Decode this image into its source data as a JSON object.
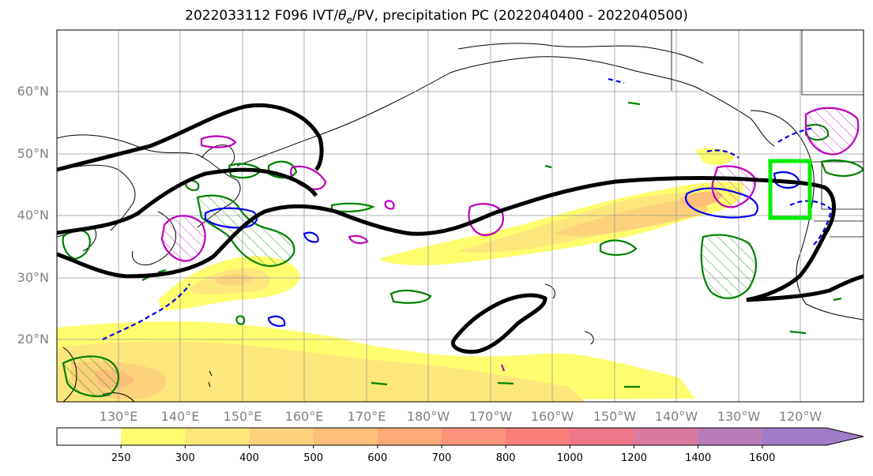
{
  "title_prefix": "2022033112 F096 IVT/",
  "title_theta": "θ",
  "title_sub": "e",
  "title_suffix": "/PV, precipitation PC (2022040400 - 2022040500)",
  "lat_labels": [
    "60°N",
    "50°N",
    "40°N",
    "30°N",
    "20°N"
  ],
  "lon_labels": [
    "130°E",
    "140°E",
    "150°E",
    "160°E",
    "170°E",
    "180°W",
    "170°W",
    "160°W",
    "150°W",
    "140°W",
    "130°W",
    "120°W"
  ],
  "colorbar": {
    "levels": [
      "250",
      "300",
      "400",
      "500",
      "600",
      "700",
      "800",
      "1000",
      "1200",
      "1400",
      "1600"
    ],
    "colors": [
      "#ffffff",
      "#fefe6e",
      "#fde77c",
      "#fdd27c",
      "#fdbf7a",
      "#fdaa78",
      "#fc937a",
      "#fa7e7a",
      "#ee7789",
      "#d97ba0",
      "#b87cb8",
      "#a07cc8"
    ]
  },
  "colors": {
    "ivt_fill": "#fde77c",
    "theta_e_contour": "#000000",
    "pv_contour": "#0000ee",
    "precip_pc": "#008000",
    "precip_pc_high": "#bb00bb",
    "target_box": "#00ee00"
  }
}
